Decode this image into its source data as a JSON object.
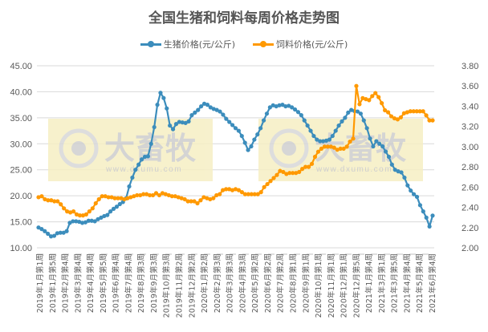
{
  "chart_data": {
    "type": "line",
    "title": "全国生猪和饲料每周价格走势图",
    "xlabel": "",
    "ylabel_left": "",
    "ylabel_right": "",
    "legend_position": "top",
    "grid": true,
    "y_left": {
      "ticks": [
        "45.00",
        "40.00",
        "35.00",
        "30.00",
        "25.00",
        "20.00",
        "15.00",
        "10.00"
      ],
      "range": [
        10,
        45
      ]
    },
    "y_right": {
      "ticks": [
        "3.80",
        "3.60",
        "3.40",
        "3.20",
        "3.00",
        "2.80",
        "2.60",
        "2.40",
        "2.20",
        "2.00"
      ],
      "range": [
        2.0,
        3.8
      ]
    },
    "x_tick_labels": [
      "2019年1月第1周",
      "2019年1月第5周",
      "2019年2月第4周",
      "2019年3月第4周",
      "2019年4月第4周",
      "2019年5月第5周",
      "2019年6月第4周",
      "2019年7月第4周",
      "2019年8月第3周",
      "2019年9月第3周",
      "2019年10月第3周",
      "2019年11月第2周",
      "2019年12月第2周",
      "2020年1月第2周",
      "2020年2月第3周",
      "2020年3月第3周",
      "2020年4月第3周",
      "2020年5月第2周",
      "2020年6月第2周",
      "2020年7月第2周",
      "2020年8月第1周",
      "2020年9月第1周",
      "2020年10月第1周",
      "2020年11月第1周",
      "2020年12月第1周",
      "2020年12月第5周",
      "2021年1月第4周",
      "2021年3月第1周",
      "2021年3月第5周",
      "2021年4月第4周",
      "2021年5月第4周",
      "2021年6月第4周"
    ],
    "series": [
      {
        "name": "生猪价格(元/公斤)",
        "axis": "left",
        "color": "#3c8dbc",
        "values": [
          13.9,
          13.6,
          13.2,
          12.7,
          12.2,
          12.3,
          12.8,
          12.9,
          12.9,
          13.2,
          14.8,
          15.1,
          15.1,
          15.0,
          14.8,
          14.9,
          15.2,
          15.2,
          15.1,
          15.5,
          15.8,
          16.1,
          16.3,
          17.0,
          17.5,
          17.9,
          18.4,
          18.8,
          19.5,
          21.8,
          23.5,
          25.0,
          26.0,
          27.0,
          27.5,
          27.6,
          30.0,
          33.2,
          37.5,
          39.8,
          38.8,
          36.8,
          33.5,
          32.8,
          33.8,
          34.2,
          34.1,
          34.0,
          34.3,
          35.5,
          36.0,
          36.5,
          37.2,
          37.7,
          37.5,
          37.0,
          36.7,
          36.5,
          36.2,
          35.6,
          34.8,
          34.2,
          33.6,
          33.0,
          32.5,
          31.5,
          30.2,
          28.8,
          29.5,
          30.8,
          31.8,
          33.0,
          34.5,
          35.8,
          37.0,
          37.4,
          37.2,
          37.4,
          37.5,
          37.2,
          37.3,
          37.0,
          36.6,
          36.1,
          35.5,
          34.5,
          33.5,
          32.5,
          31.5,
          30.8,
          30.5,
          30.5,
          30.6,
          30.8,
          31.5,
          32.5,
          33.5,
          34.3,
          35.0,
          36.0,
          36.5,
          36.3,
          36.2,
          35.8,
          34.5,
          33.0,
          31.0,
          29.5,
          30.5,
          30.0,
          29.5,
          28.5,
          27.5,
          26.0,
          25.0,
          24.7,
          24.5,
          23.5,
          22.0,
          21.0,
          20.3,
          19.8,
          18.2,
          17.0,
          15.8,
          14.1,
          16.2
        ]
      },
      {
        "name": "饲料价格(元/公斤)",
        "axis": "right",
        "color": "#ff9900",
        "values": [
          2.5,
          2.51,
          2.48,
          2.47,
          2.47,
          2.46,
          2.46,
          2.43,
          2.39,
          2.36,
          2.35,
          2.36,
          2.33,
          2.32,
          2.32,
          2.33,
          2.36,
          2.39,
          2.44,
          2.48,
          2.51,
          2.51,
          2.5,
          2.5,
          2.49,
          2.49,
          2.49,
          2.48,
          2.49,
          2.5,
          2.51,
          2.52,
          2.52,
          2.53,
          2.53,
          2.52,
          2.52,
          2.54,
          2.52,
          2.54,
          2.53,
          2.52,
          2.51,
          2.51,
          2.5,
          2.49,
          2.48,
          2.46,
          2.46,
          2.46,
          2.44,
          2.47,
          2.5,
          2.49,
          2.48,
          2.49,
          2.52,
          2.53,
          2.57,
          2.58,
          2.58,
          2.57,
          2.58,
          2.57,
          2.55,
          2.53,
          2.53,
          2.53,
          2.53,
          2.53,
          2.55,
          2.6,
          2.63,
          2.66,
          2.69,
          2.72,
          2.76,
          2.75,
          2.73,
          2.74,
          2.74,
          2.74,
          2.75,
          2.78,
          2.8,
          2.8,
          2.83,
          2.9,
          2.95,
          2.98,
          3.0,
          3.0,
          3.0,
          2.99,
          2.97,
          2.98,
          2.98,
          3.0,
          3.05,
          3.08,
          3.6,
          3.42,
          3.48,
          3.47,
          3.46,
          3.5,
          3.53,
          3.49,
          3.43,
          3.36,
          3.34,
          3.3,
          3.28,
          3.27,
          3.29,
          3.33,
          3.34,
          3.35,
          3.35,
          3.35,
          3.35,
          3.35,
          3.31,
          3.26,
          3.26
        ]
      }
    ]
  },
  "header": {
    "title": "全国生猪和饲料每周价格走势图"
  },
  "legend": [
    {
      "label": "生猪价格(元/公斤)",
      "color": "#3c8dbc"
    },
    {
      "label": "饲料价格(元/公斤)",
      "color": "#ff9900"
    }
  ],
  "watermark": {
    "brand": "大畜牧",
    "url": "www.dxumu.com"
  }
}
